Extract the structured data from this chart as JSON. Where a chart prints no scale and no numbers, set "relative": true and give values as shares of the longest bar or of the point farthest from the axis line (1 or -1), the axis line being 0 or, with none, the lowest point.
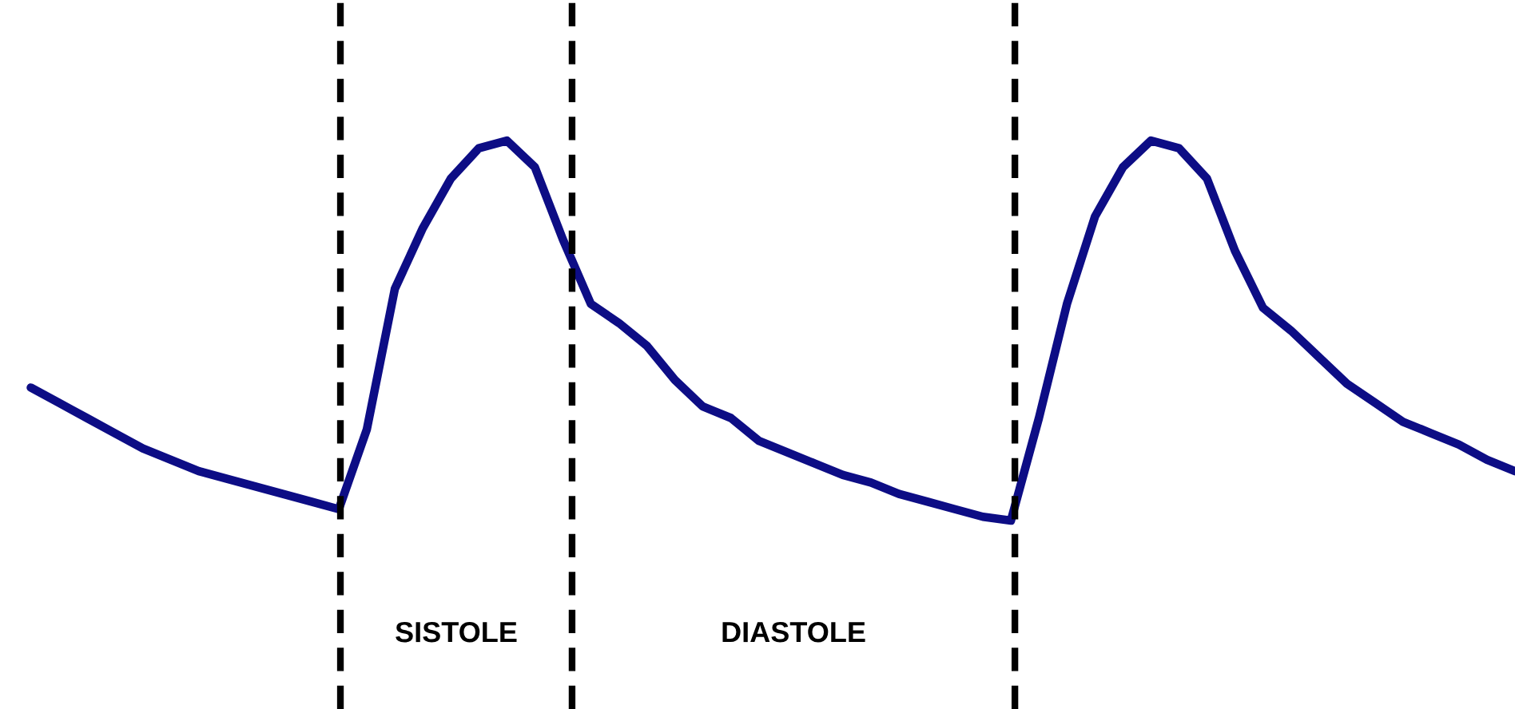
{
  "chart_data": {
    "type": "line",
    "relative": true,
    "categories": [
      null,
      null,
      null,
      null,
      null,
      null,
      null,
      null,
      null,
      null,
      null,
      null,
      null,
      null,
      null,
      null,
      null,
      null,
      null,
      null,
      null,
      null,
      null,
      null,
      null,
      null,
      null,
      null,
      null,
      null,
      null,
      null,
      null,
      null,
      null,
      null,
      null,
      null,
      null,
      null,
      null,
      null,
      null,
      null,
      null,
      null,
      null,
      null,
      null,
      null,
      null,
      null,
      null,
      null
    ],
    "series": [
      {
        "color": "#0d0d85",
        "values": [
          0.35,
          0.31,
          0.27,
          0.23,
          0.19,
          0.16,
          0.13,
          0.11,
          0.09,
          0.07,
          0.05,
          0.03,
          0.24,
          0.61,
          0.77,
          0.9,
          0.98,
          1,
          0.93,
          0.74,
          0.57,
          0.52,
          0.46,
          0.37,
          0.3,
          0.27,
          0.21,
          0.18,
          0.15,
          0.12,
          0.1,
          0.07,
          0.05,
          0.03,
          0.01,
          0,
          0.27,
          0.57,
          0.8,
          0.93,
          1,
          0.98,
          0.9,
          0.71,
          0.56,
          0.5,
          0.43,
          0.36,
          0.31,
          0.26,
          0.23,
          0.2,
          0.16,
          0.13
        ]
      }
    ],
    "annotations": [
      "SISTOLE",
      "DIASTOLE"
    ]
  }
}
